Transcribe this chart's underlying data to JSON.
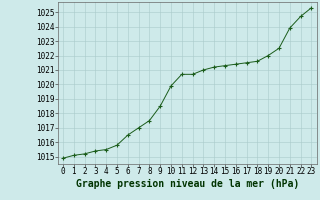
{
  "x": [
    0,
    1,
    2,
    3,
    4,
    5,
    6,
    7,
    8,
    9,
    10,
    11,
    12,
    13,
    14,
    15,
    16,
    17,
    18,
    19,
    20,
    21,
    22,
    23
  ],
  "y": [
    1014.9,
    1015.1,
    1015.2,
    1015.4,
    1015.5,
    1015.8,
    1016.5,
    1017.0,
    1017.5,
    1018.5,
    1019.9,
    1020.7,
    1020.7,
    1021.0,
    1021.2,
    1021.3,
    1021.4,
    1021.5,
    1021.6,
    1022.0,
    1022.5,
    1023.9,
    1024.7,
    1025.3
  ],
  "line_color": "#1a5c1a",
  "marker": "+",
  "marker_size": 3.0,
  "bg_color": "#ceeaea",
  "grid_color": "#aacaca",
  "title": "Graphe pression niveau de la mer (hPa)",
  "ylim": [
    1014.5,
    1025.7
  ],
  "xlim": [
    -0.5,
    23.5
  ],
  "yticks": [
    1015,
    1016,
    1017,
    1018,
    1019,
    1020,
    1021,
    1022,
    1023,
    1024,
    1025
  ],
  "xticks": [
    0,
    1,
    2,
    3,
    4,
    5,
    6,
    7,
    8,
    9,
    10,
    11,
    12,
    13,
    14,
    15,
    16,
    17,
    18,
    19,
    20,
    21,
    22,
    23
  ],
  "title_fontsize": 7.0,
  "tick_fontsize": 5.5,
  "title_fontweight": "bold"
}
